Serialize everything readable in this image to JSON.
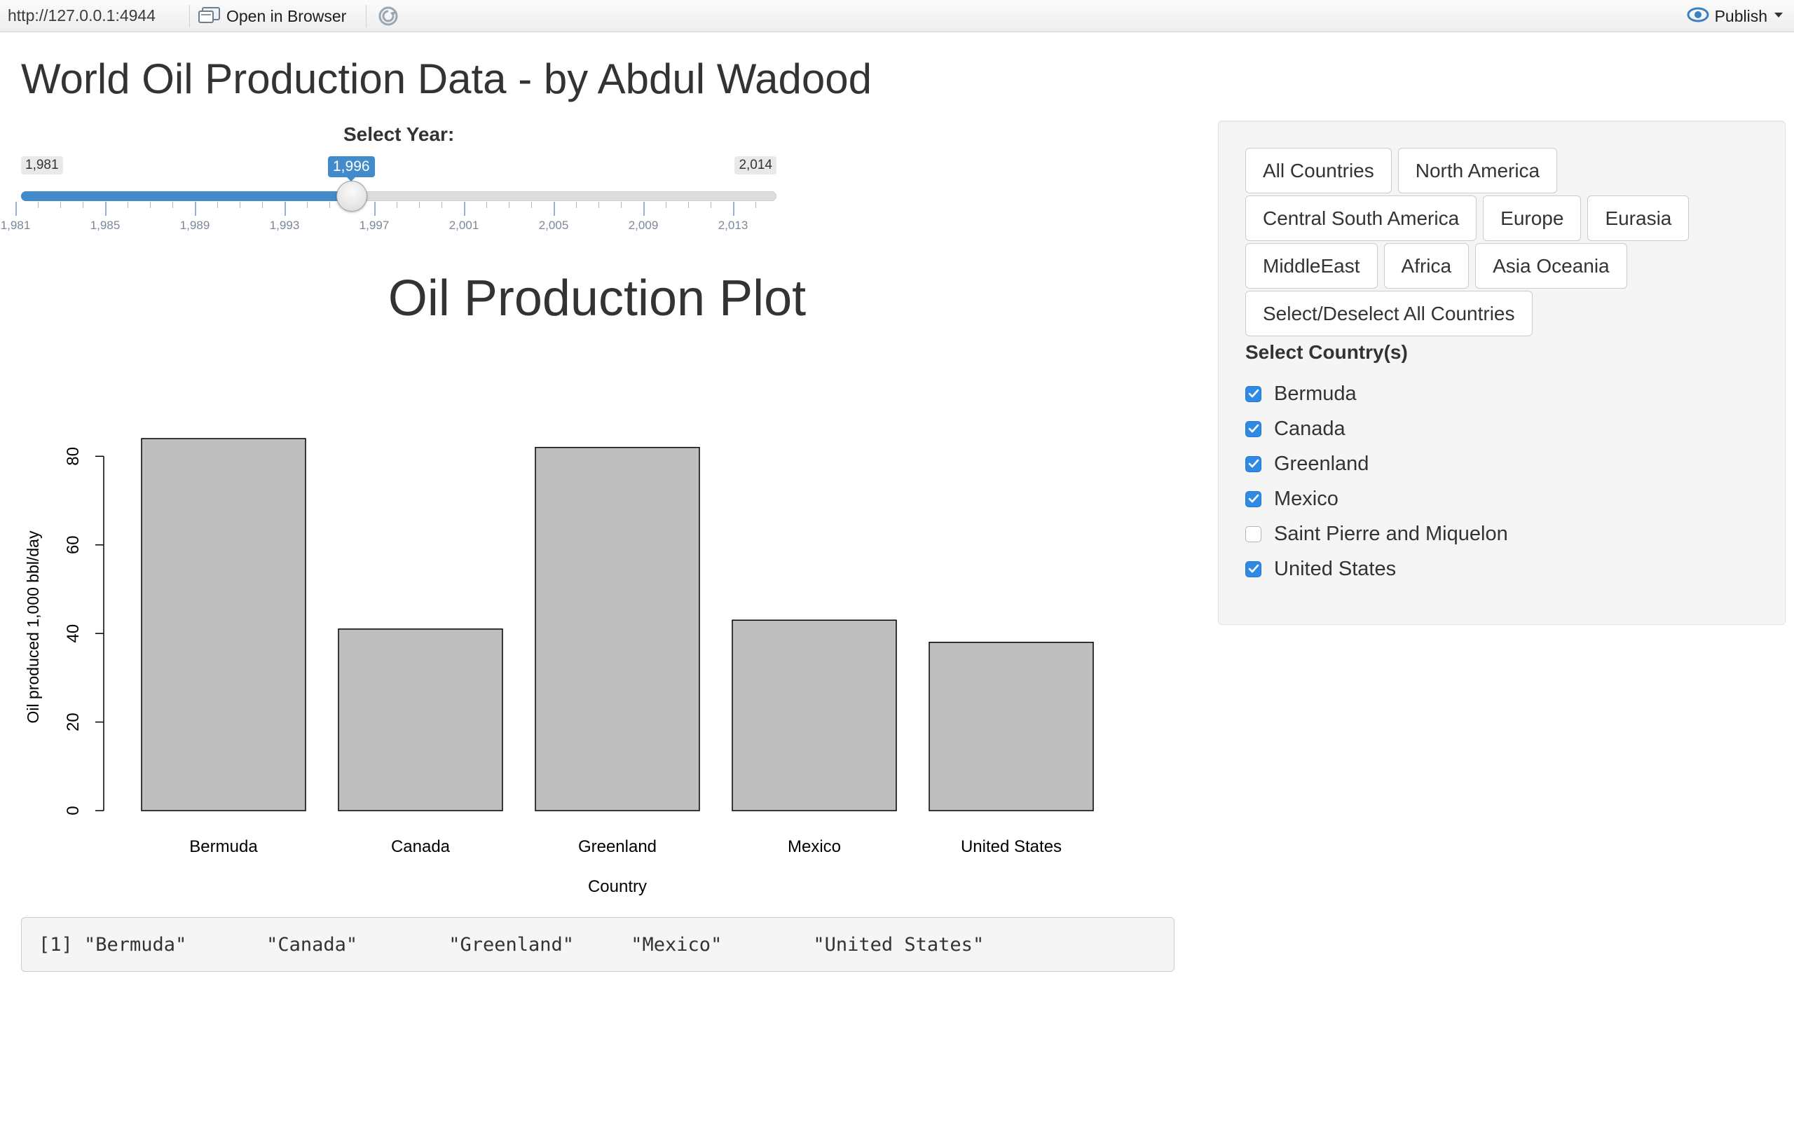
{
  "toolbar": {
    "url": "http://127.0.0.1:4944",
    "open_label": "Open in Browser",
    "publish_label": "Publish"
  },
  "page": {
    "title": "World Oil Production Data - by Abdul Wadood"
  },
  "slider": {
    "label": "Select Year:",
    "min": 1981,
    "max": 2014,
    "value": 1996,
    "min_label": "1,981",
    "max_label": "2,014",
    "value_label": "1,996",
    "tick_labels": [
      "1,981",
      "1,985",
      "1,989",
      "1,993",
      "1,997",
      "2,001",
      "2,005",
      "2,009",
      "2,013"
    ],
    "accent": "#428bca"
  },
  "region_buttons": [
    [
      "All Countries",
      "North America"
    ],
    [
      "Central South America",
      "Europe",
      "Eurasia"
    ],
    [
      "MiddleEast",
      "Africa",
      "Asia Oceania"
    ],
    [
      "Select/Deselect All Countries"
    ]
  ],
  "countries": {
    "label": "Select Country(s)",
    "items": [
      {
        "name": "Bermuda",
        "checked": true
      },
      {
        "name": "Canada",
        "checked": true
      },
      {
        "name": "Greenland",
        "checked": true
      },
      {
        "name": "Mexico",
        "checked": true
      },
      {
        "name": "Saint Pierre and Miquelon",
        "checked": false
      },
      {
        "name": "United States",
        "checked": true
      }
    ],
    "check_color": "#2f8ae6"
  },
  "output_text": "[1] \"Bermuda\"       \"Canada\"        \"Greenland\"     \"Mexico\"        \"United States\"",
  "chart_data": {
    "type": "bar",
    "title": "Oil Production Plot",
    "xlabel": "Country",
    "ylabel": "Oil produced 1,000 bbl/day",
    "categories": [
      "Bermuda",
      "Canada",
      "Greenland",
      "Mexico",
      "United States"
    ],
    "values": [
      84,
      41,
      82,
      43,
      38
    ],
    "yticks": [
      0,
      20,
      40,
      60,
      80
    ],
    "ylim": [
      0,
      84
    ],
    "bar_color": "#bebebe",
    "grid": false
  }
}
